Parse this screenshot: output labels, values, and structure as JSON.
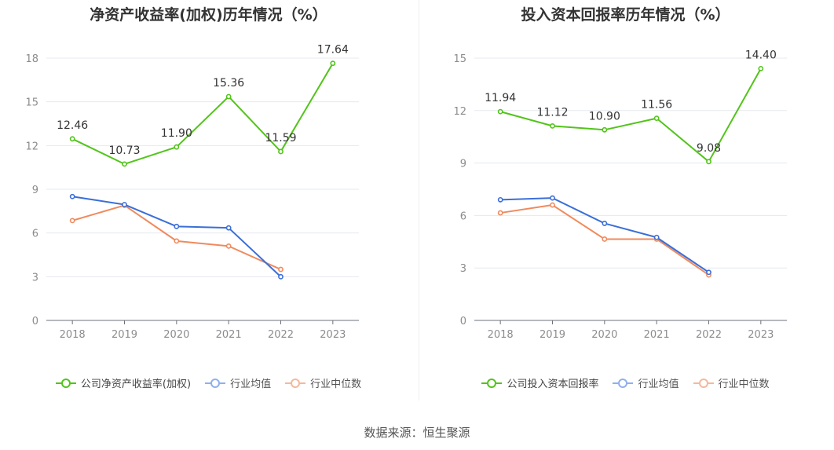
{
  "chart_data": [
    {
      "type": "line",
      "title": "净资产收益率(加权)历年情况（%）",
      "categories": [
        "2018",
        "2019",
        "2020",
        "2021",
        "2022",
        "2023"
      ],
      "ylim": [
        0,
        18
      ],
      "yticks": [
        0,
        3,
        6,
        9,
        12,
        15,
        18
      ],
      "grid": true,
      "legend_position": "bottom",
      "series": [
        {
          "name": "公司净资产收益率(加权)",
          "color": "#52c41a",
          "values": [
            12.46,
            10.73,
            11.9,
            15.36,
            11.59,
            17.64
          ],
          "labels": [
            "12.46",
            "10.73",
            "11.90",
            "15.36",
            "11.59",
            "17.64"
          ]
        },
        {
          "name": "行业均值",
          "color": "#3a6fd8",
          "values": [
            8.5,
            7.95,
            6.45,
            6.35,
            3.0,
            null
          ]
        },
        {
          "name": "行业中位数",
          "color": "#f08a5d",
          "values": [
            6.85,
            7.9,
            5.45,
            5.1,
            3.5,
            null
          ]
        }
      ]
    },
    {
      "type": "line",
      "title": "投入资本回报率历年情况（%）",
      "categories": [
        "2018",
        "2019",
        "2020",
        "2021",
        "2022",
        "2023"
      ],
      "ylim": [
        0,
        15
      ],
      "yticks": [
        0,
        3,
        6,
        9,
        12,
        15
      ],
      "grid": true,
      "legend_position": "bottom",
      "series": [
        {
          "name": "公司投入资本回报率",
          "color": "#52c41a",
          "values": [
            11.94,
            11.12,
            10.9,
            11.56,
            9.08,
            14.4
          ],
          "labels": [
            "11.94",
            "11.12",
            "10.90",
            "11.56",
            "9.08",
            "14.40"
          ]
        },
        {
          "name": "行业均值",
          "color": "#3a6fd8",
          "values": [
            6.9,
            7.0,
            5.55,
            4.75,
            2.75,
            null
          ]
        },
        {
          "name": "行业中位数",
          "color": "#f08a5d",
          "values": [
            6.15,
            6.6,
            4.65,
            4.65,
            2.6,
            null
          ]
        }
      ]
    }
  ],
  "source_text": "数据来源：恒生聚源"
}
